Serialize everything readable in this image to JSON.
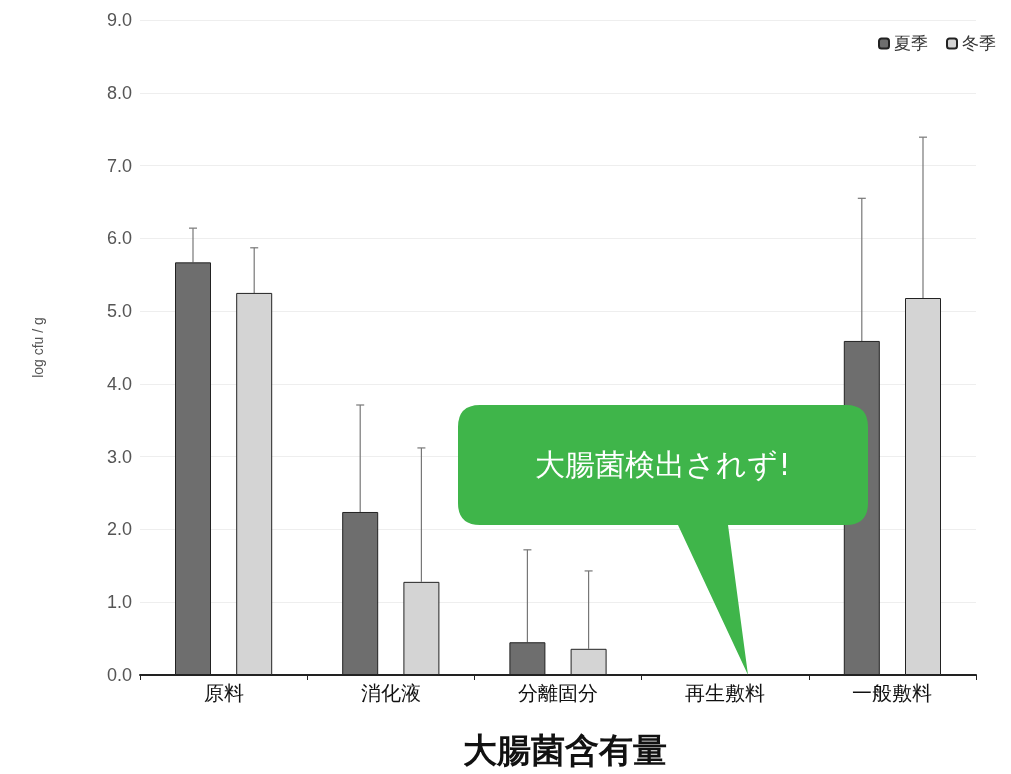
{
  "chart_data": {
    "type": "bar",
    "title": "大腸菌含有量",
    "ylabel": "log cfu / g",
    "categories": [
      "原料",
      "消化液",
      "分離固分",
      "再生敷料",
      "一般敷料"
    ],
    "series": [
      {
        "name": "夏季",
        "color": "#6e6e6e",
        "values": [
          5.67,
          2.24,
          0.45,
          null,
          4.59
        ],
        "errors": [
          [
            5.67,
            6.14
          ],
          [
            2.24,
            3.71
          ],
          [
            0.45,
            1.72
          ],
          null,
          [
            4.59,
            6.55
          ]
        ]
      },
      {
        "name": "冬季",
        "color": "#d4d4d4",
        "values": [
          5.25,
          1.28,
          0.36,
          null,
          5.18
        ],
        "errors": [
          [
            5.25,
            5.87
          ],
          [
            1.28,
            3.12
          ],
          [
            0.36,
            1.43
          ],
          null,
          [
            5.18,
            7.39
          ]
        ]
      }
    ],
    "ylim": [
      0,
      9
    ],
    "yticks": [
      {
        "value": 0,
        "label": "0.0"
      },
      {
        "value": 1,
        "label": "1.0"
      },
      {
        "value": 2,
        "label": "2.0"
      },
      {
        "value": 3,
        "label": "3.0"
      },
      {
        "value": 4,
        "label": "4.0"
      },
      {
        "value": 5,
        "label": "5.0"
      },
      {
        "value": 6,
        "label": "6.0"
      },
      {
        "value": 7,
        "label": "7.0"
      },
      {
        "value": 8,
        "label": "8.0"
      },
      {
        "value": 9,
        "label": "9.0"
      }
    ],
    "grid": "y",
    "legend": "top right",
    "annotations": [
      "大腸菌検出されず!"
    ]
  }
}
